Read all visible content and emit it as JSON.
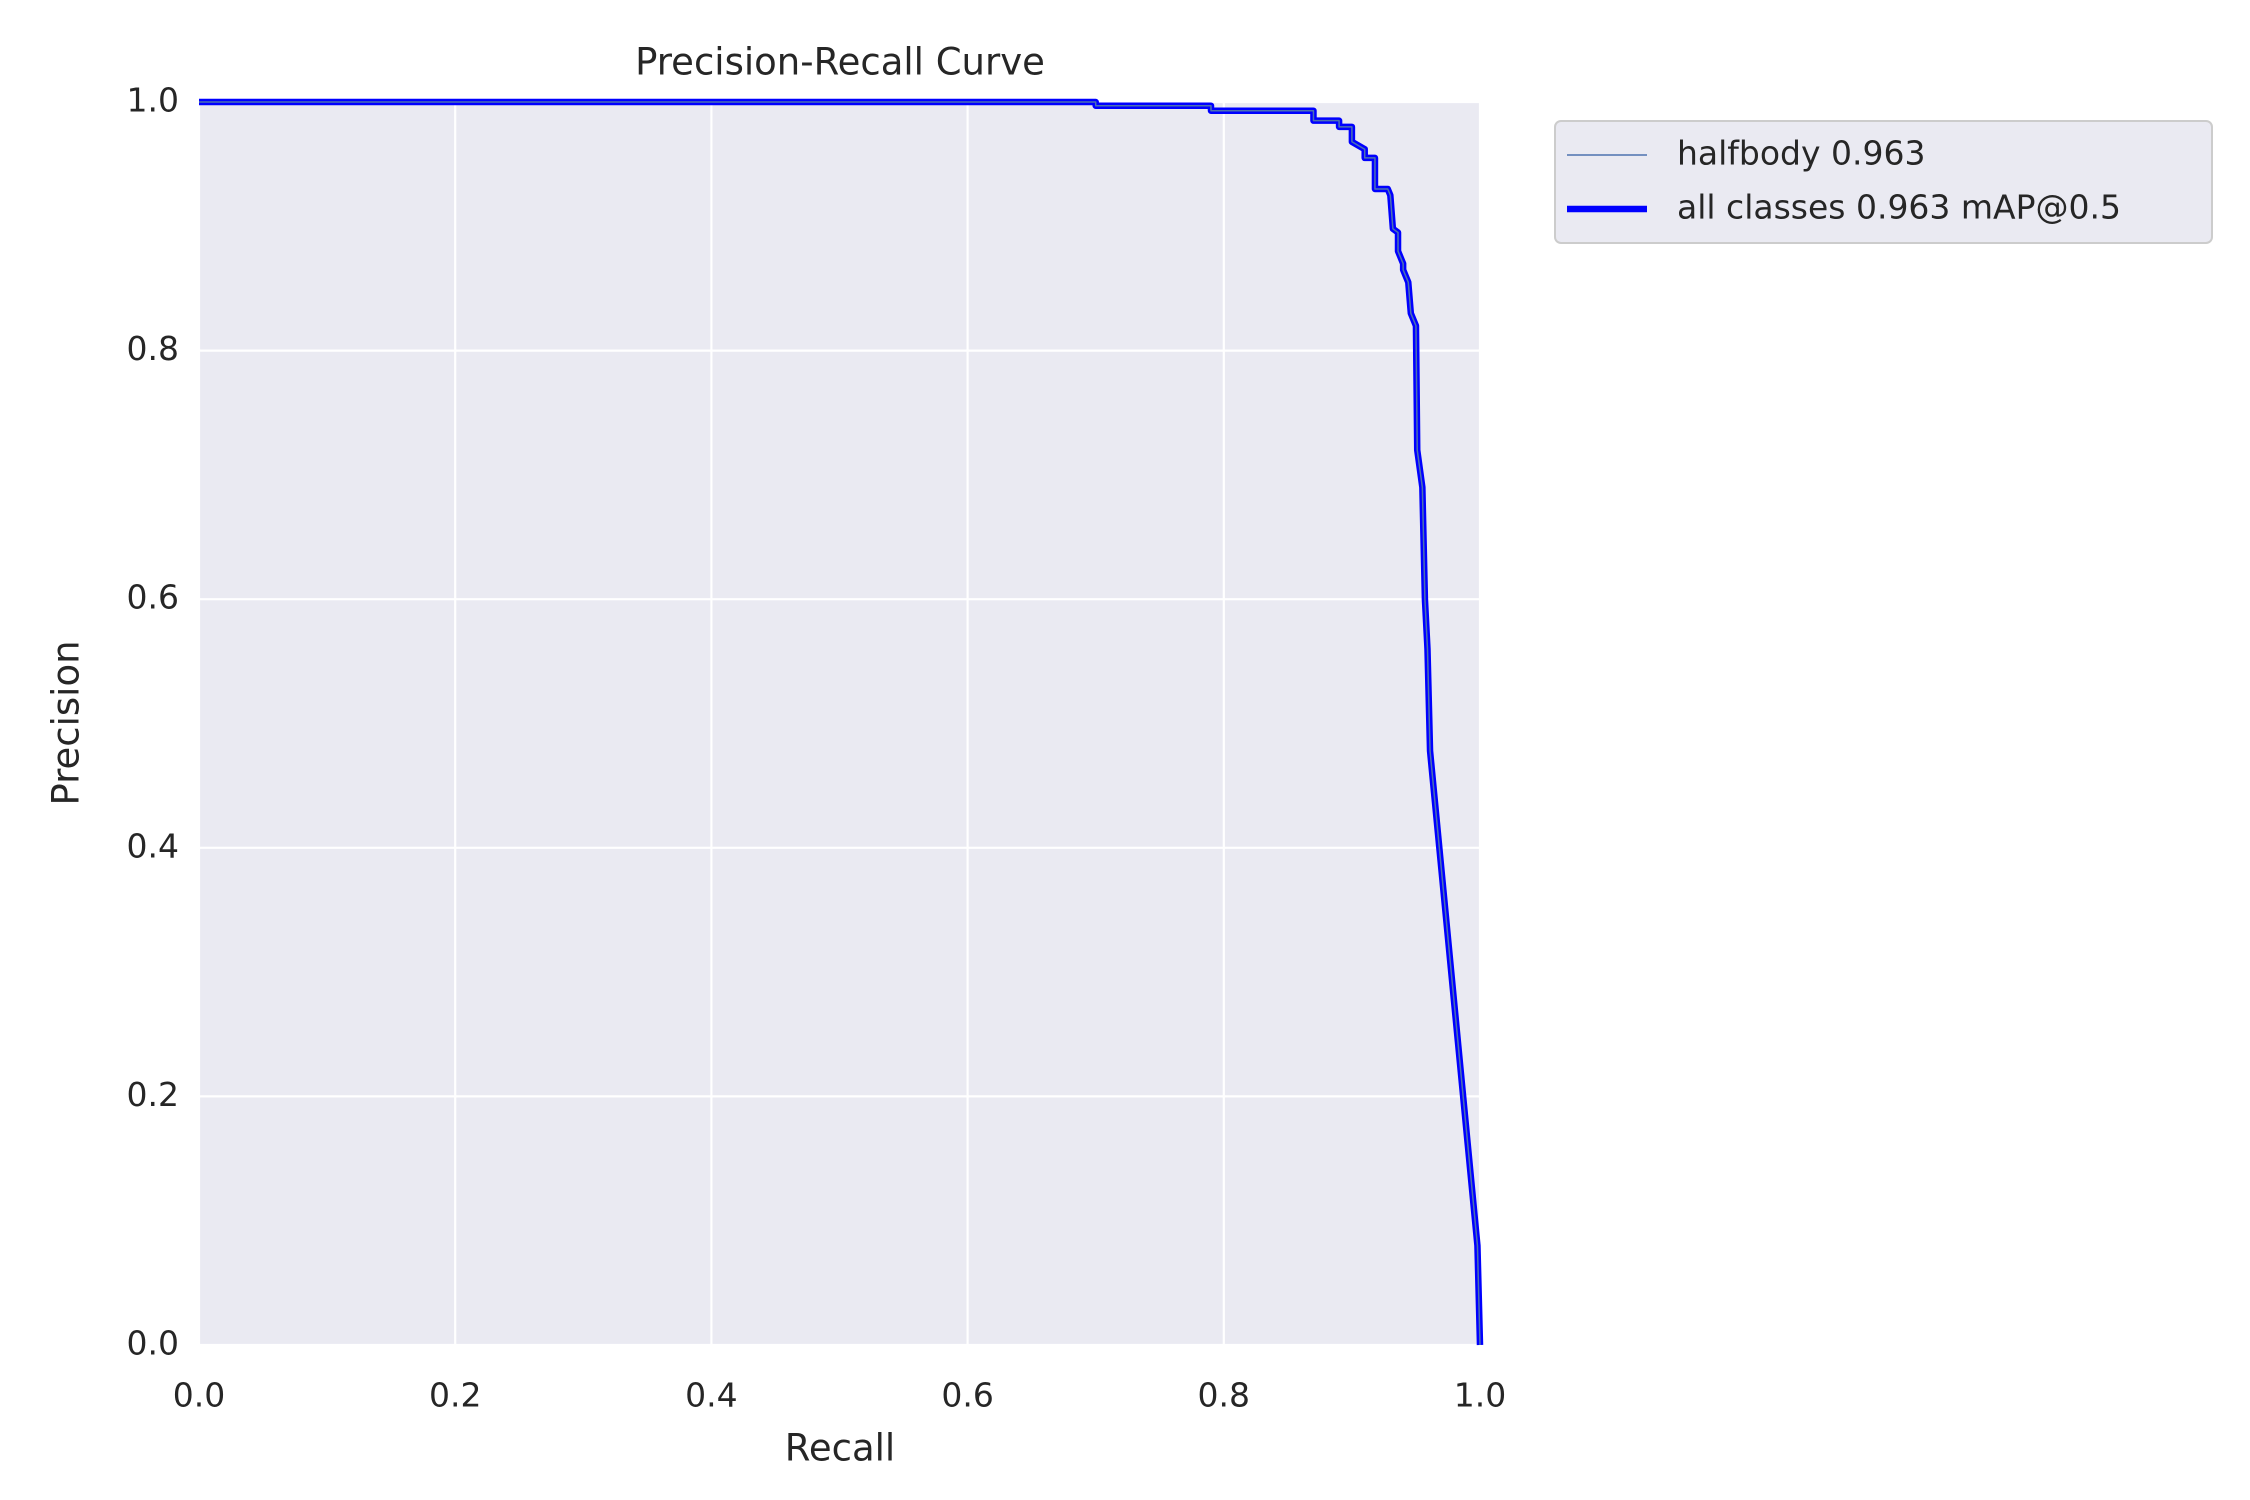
{
  "chart_data": {
    "type": "line",
    "title": "Precision-Recall Curve",
    "x_label": "Recall",
    "y_label": "Precision",
    "x": [
      0,
      0.7,
      0.7,
      0.79,
      0.79,
      0.87,
      0.87,
      0.89,
      0.89,
      0.9,
      0.9,
      0.91,
      0.91,
      0.918,
      0.918,
      0.928,
      0.93,
      0.932,
      0.936,
      0.936,
      0.94,
      0.94,
      0.944,
      0.946,
      0.95,
      0.951,
      0.955,
      0.957,
      0.959,
      0.961,
      0.998,
      1.0
    ],
    "series": [
      {
        "name": "halfbody 0.963",
        "color": "#4c72b0",
        "width": 1.5,
        "values": [
          1.0,
          1.0,
          0.997,
          0.997,
          0.993,
          0.993,
          0.985,
          0.985,
          0.98,
          0.98,
          0.968,
          0.962,
          0.955,
          0.955,
          0.93,
          0.93,
          0.925,
          0.898,
          0.895,
          0.88,
          0.87,
          0.865,
          0.855,
          0.83,
          0.82,
          0.72,
          0.69,
          0.6,
          0.56,
          0.478,
          0.08,
          0.0
        ]
      },
      {
        "name": "all classes 0.963 mAP@0.5",
        "color": "#0000ff",
        "width": 6.5,
        "values": [
          1.0,
          1.0,
          0.997,
          0.997,
          0.993,
          0.993,
          0.985,
          0.985,
          0.98,
          0.98,
          0.968,
          0.962,
          0.955,
          0.955,
          0.93,
          0.93,
          0.925,
          0.898,
          0.895,
          0.88,
          0.87,
          0.865,
          0.855,
          0.83,
          0.82,
          0.72,
          0.69,
          0.6,
          0.56,
          0.478,
          0.08,
          0.0
        ]
      }
    ],
    "xlim": [
      0,
      1
    ],
    "ylim": [
      0,
      1
    ],
    "xticks": [
      {
        "value": 0,
        "label": "0.0"
      },
      0.2,
      0.4,
      0.6,
      0.8,
      {
        "value": 1,
        "label": "1.0"
      }
    ],
    "yticks": [
      {
        "value": 0,
        "label": "0.0"
      },
      0.2,
      0.4,
      0.6,
      0.8,
      {
        "value": 1,
        "label": "1.0"
      }
    ],
    "grid": true,
    "legend": "outside upper right"
  }
}
